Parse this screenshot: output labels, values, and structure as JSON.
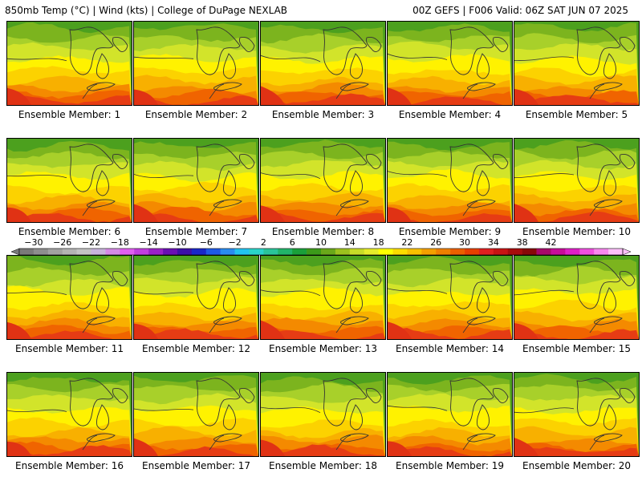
{
  "header": {
    "title_left": "850mb Temp (°C) | Wind (kts) | College of DuPage NEXLAB",
    "title_right": "00Z GEFS | F006 Valid: 06Z SAT JUN 07 2025"
  },
  "members": [
    "Ensemble Member: 1",
    "Ensemble Member: 2",
    "Ensemble Member: 3",
    "Ensemble Member: 4",
    "Ensemble Member: 5",
    "Ensemble Member: 6",
    "Ensemble Member: 7",
    "Ensemble Member: 8",
    "Ensemble Member: 9",
    "Ensemble Member: 10",
    "Ensemble Member: 11",
    "Ensemble Member: 12",
    "Ensemble Member: 13",
    "Ensemble Member: 14",
    "Ensemble Member: 15",
    "Ensemble Member: 16",
    "Ensemble Member: 17",
    "Ensemble Member: 18",
    "Ensemble Member: 19",
    "Ensemble Member: 20"
  ],
  "colorbar": {
    "labels": [
      "−30",
      "−26",
      "−22",
      "−18",
      "−14",
      "−10",
      "−6",
      "−2",
      "2",
      "6",
      "10",
      "14",
      "18",
      "22",
      "26",
      "30",
      "34",
      "38",
      "42"
    ],
    "colors": [
      "#7a7a7a",
      "#8e8e8e",
      "#a2a2a2",
      "#b4b4b4",
      "#c4c4c4",
      "#c8b4dc",
      "#d68ae6",
      "#e05ff0",
      "#c23ee0",
      "#9a22c8",
      "#6a10b4",
      "#3c10a8",
      "#1a28c8",
      "#1f5ae6",
      "#2a8cf0",
      "#22c4f0",
      "#2ad4c8",
      "#2ac49a",
      "#22b46a",
      "#1aa03a",
      "#3c9a1a",
      "#6aa81a",
      "#9cc21e",
      "#c8dc28",
      "#e6ec2a",
      "#ffff00",
      "#fcdc00",
      "#f8c000",
      "#f4a000",
      "#f08000",
      "#ec6000",
      "#e84000",
      "#e02020",
      "#c81414",
      "#a80c0c",
      "#880808",
      "#a8086a",
      "#c80c9a",
      "#e020c8",
      "#f050e0",
      "#f888f0",
      "#fcc0fa"
    ],
    "ticks_start": -30,
    "ticks_step": 4
  },
  "map_fill": [
    "#4ca01e",
    "#7cb41e",
    "#a8d02a",
    "#d2e42a",
    "#fff200",
    "#fcd200",
    "#f8b000",
    "#f48a00",
    "#f06400",
    "#e63c14"
  ]
}
